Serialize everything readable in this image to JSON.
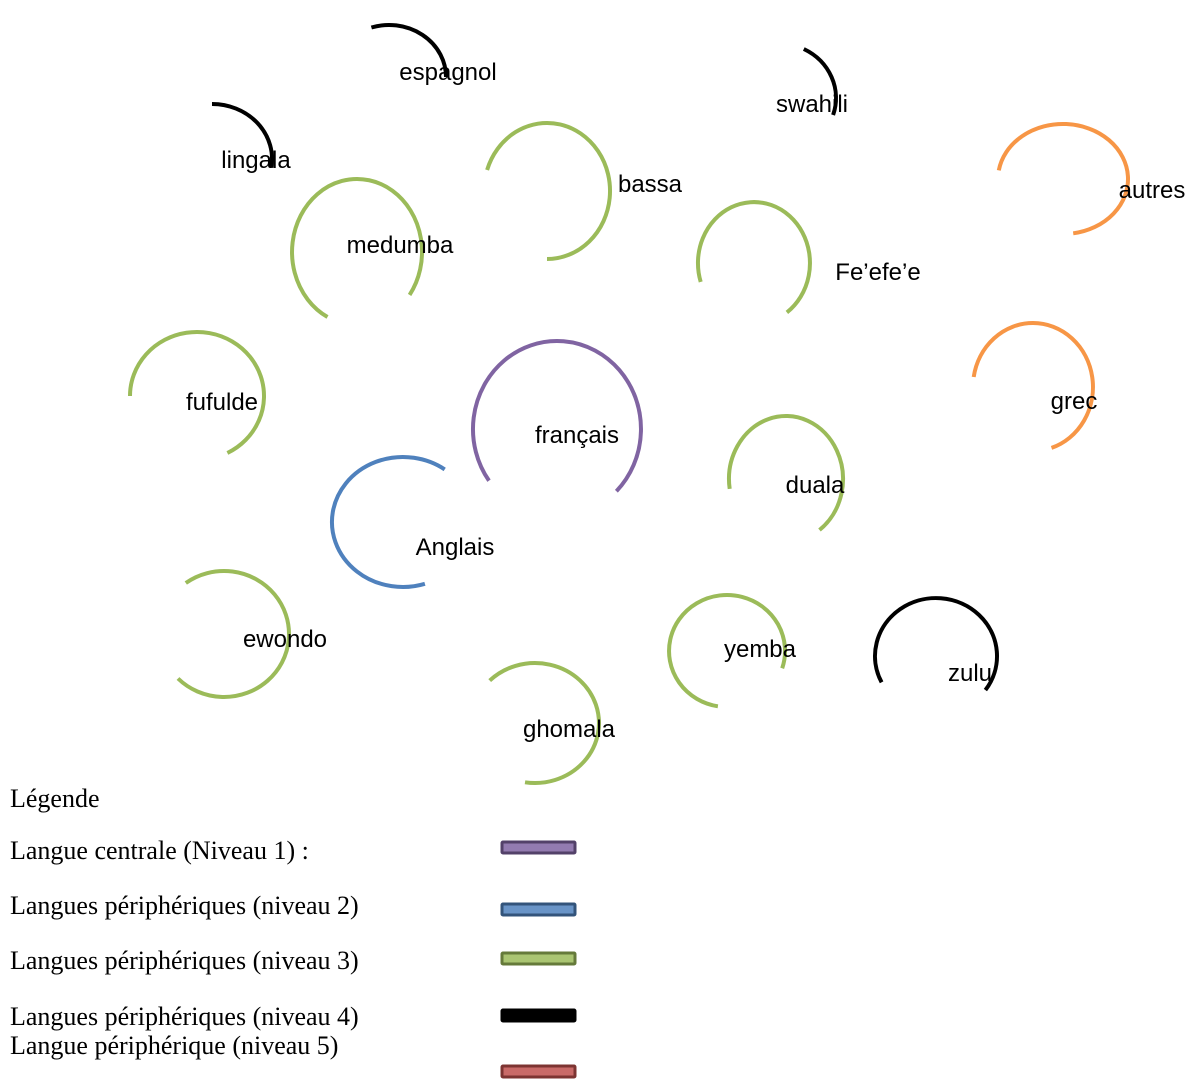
{
  "colors": {
    "level1": "#8064a2",
    "level2": "#4f81bd",
    "level3": "#9bbb59",
    "level4": "#000000",
    "level5": "#c0504d",
    "orange": "#f79646"
  },
  "nodes": [
    {
      "id": "espagnol",
      "label": "espagnol",
      "level": "level4"
    },
    {
      "id": "swahili",
      "label": "swahili",
      "level": "level4"
    },
    {
      "id": "lingala",
      "label": "lingala",
      "level": "level4"
    },
    {
      "id": "bassa",
      "label": "bassa",
      "level": "level3"
    },
    {
      "id": "autres",
      "label": "autres",
      "level": "orange"
    },
    {
      "id": "medumba",
      "label": "medumba",
      "level": "level3"
    },
    {
      "id": "feefee",
      "label": "Fe’efe’e",
      "level": "level3"
    },
    {
      "id": "fufulde",
      "label": "fufulde",
      "level": "level3"
    },
    {
      "id": "francais",
      "label": "français",
      "level": "level1"
    },
    {
      "id": "grec",
      "label": "grec",
      "level": "orange"
    },
    {
      "id": "duala",
      "label": "duala",
      "level": "level3"
    },
    {
      "id": "anglais",
      "label": "Anglais",
      "level": "level2"
    },
    {
      "id": "ewondo",
      "label": "ewondo",
      "level": "level3"
    },
    {
      "id": "yemba",
      "label": "yemba",
      "level": "level3"
    },
    {
      "id": "zulu",
      "label": "zulu",
      "level": "level4"
    },
    {
      "id": "ghomala",
      "label": "ghomala",
      "level": "level3"
    }
  ],
  "legend": {
    "title": "Légende",
    "items": [
      {
        "label": "Langue centrale (Niveau 1) :",
        "level": "level1"
      },
      {
        "label": "Langues périphériques (niveau 2)",
        "level": "level2"
      },
      {
        "label": "Langues périphériques (niveau 3)",
        "level": "level3"
      },
      {
        "label": "Langues périphériques (niveau 4)",
        "level": "level4"
      },
      {
        "label": "Langue périphérique (niveau 5)",
        "level": "level5"
      }
    ]
  }
}
